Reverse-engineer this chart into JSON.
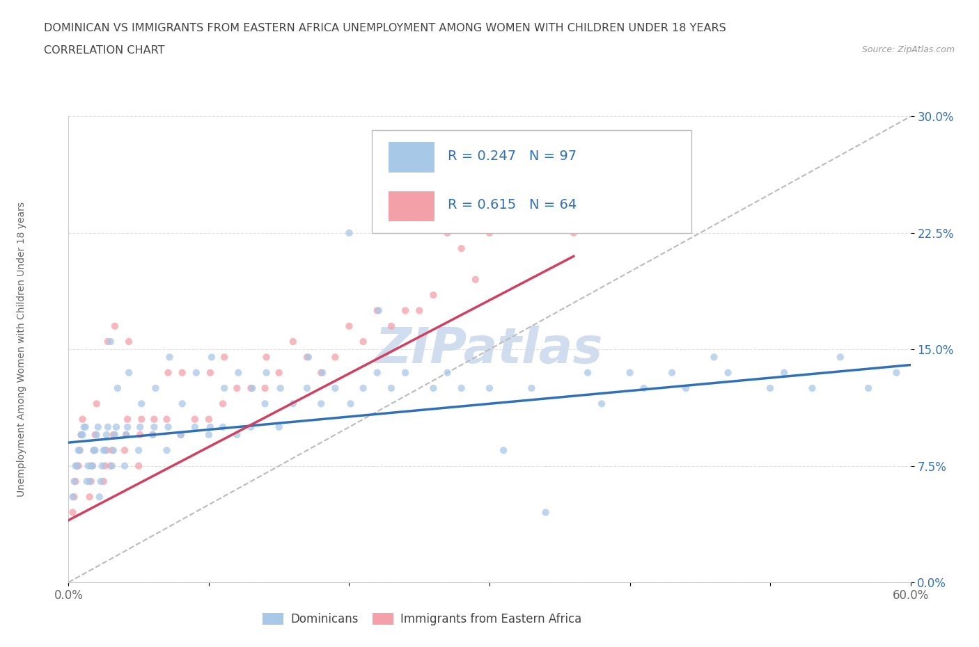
{
  "title_line1": "DOMINICAN VS IMMIGRANTS FROM EASTERN AFRICA UNEMPLOYMENT AMONG WOMEN WITH CHILDREN UNDER 18 YEARS",
  "title_line2": "CORRELATION CHART",
  "source_text": "Source: ZipAtlas.com",
  "ylabel": "Unemployment Among Women with Children Under 18 years",
  "xmin": 0.0,
  "xmax": 0.6,
  "ymin": 0.0,
  "ymax": 0.3,
  "xticks": [
    0.0,
    0.1,
    0.2,
    0.3,
    0.4,
    0.5,
    0.6
  ],
  "yticks": [
    0.0,
    0.075,
    0.15,
    0.225,
    0.3
  ],
  "ytick_labels": [
    "0.0%",
    "7.5%",
    "15.0%",
    "22.5%",
    "30.0%"
  ],
  "xtick_labels": [
    "0.0%",
    "",
    "",
    "",
    "",
    "",
    "60.0%"
  ],
  "legend_blue_label": "Dominicans",
  "legend_pink_label": "Immigrants from Eastern Africa",
  "blue_R": "R = 0.247",
  "blue_N": "N = 97",
  "pink_R": "R = 0.615",
  "pink_N": "N = 64",
  "blue_color": "#a8c8e8",
  "pink_color": "#f4a0a8",
  "blue_line_color": "#3070b8",
  "pink_line_color": "#d04060",
  "dashed_line_color": "#bbbbbb",
  "watermark_color": "#c8d8ec",
  "watermark_text": "ZIPatlas",
  "blue_scatter_x": [
    0.003,
    0.004,
    0.005,
    0.006,
    0.007,
    0.008,
    0.009,
    0.01,
    0.011,
    0.012,
    0.013,
    0.014,
    0.015,
    0.016,
    0.017,
    0.018,
    0.019,
    0.02,
    0.021,
    0.022,
    0.023,
    0.024,
    0.025,
    0.026,
    0.027,
    0.028,
    0.03,
    0.031,
    0.032,
    0.033,
    0.034,
    0.035,
    0.04,
    0.041,
    0.042,
    0.043,
    0.05,
    0.051,
    0.052,
    0.06,
    0.061,
    0.062,
    0.07,
    0.071,
    0.072,
    0.08,
    0.081,
    0.09,
    0.091,
    0.1,
    0.101,
    0.102,
    0.11,
    0.111,
    0.12,
    0.121,
    0.13,
    0.131,
    0.14,
    0.141,
    0.15,
    0.151,
    0.16,
    0.17,
    0.171,
    0.18,
    0.181,
    0.19,
    0.2,
    0.201,
    0.21,
    0.22,
    0.221,
    0.23,
    0.24,
    0.25,
    0.26,
    0.27,
    0.28,
    0.3,
    0.31,
    0.33,
    0.34,
    0.37,
    0.38,
    0.4,
    0.41,
    0.43,
    0.44,
    0.46,
    0.47,
    0.5,
    0.51,
    0.53,
    0.55,
    0.57,
    0.59
  ],
  "blue_scatter_y": [
    0.055,
    0.065,
    0.075,
    0.075,
    0.085,
    0.085,
    0.095,
    0.095,
    0.1,
    0.1,
    0.065,
    0.075,
    0.065,
    0.075,
    0.075,
    0.085,
    0.085,
    0.095,
    0.1,
    0.055,
    0.065,
    0.075,
    0.085,
    0.085,
    0.095,
    0.1,
    0.155,
    0.075,
    0.085,
    0.095,
    0.1,
    0.125,
    0.075,
    0.095,
    0.1,
    0.135,
    0.085,
    0.1,
    0.115,
    0.095,
    0.1,
    0.125,
    0.085,
    0.1,
    0.145,
    0.095,
    0.115,
    0.1,
    0.135,
    0.095,
    0.1,
    0.145,
    0.1,
    0.125,
    0.095,
    0.135,
    0.1,
    0.125,
    0.115,
    0.135,
    0.1,
    0.125,
    0.115,
    0.125,
    0.145,
    0.115,
    0.135,
    0.125,
    0.225,
    0.115,
    0.125,
    0.135,
    0.175,
    0.125,
    0.135,
    0.275,
    0.125,
    0.135,
    0.125,
    0.125,
    0.085,
    0.125,
    0.045,
    0.135,
    0.115,
    0.135,
    0.125,
    0.135,
    0.125,
    0.145,
    0.135,
    0.125,
    0.135,
    0.125,
    0.145,
    0.125,
    0.135
  ],
  "pink_scatter_x": [
    0.003,
    0.004,
    0.005,
    0.006,
    0.007,
    0.008,
    0.009,
    0.01,
    0.015,
    0.016,
    0.017,
    0.018,
    0.019,
    0.02,
    0.025,
    0.026,
    0.027,
    0.028,
    0.03,
    0.031,
    0.032,
    0.033,
    0.04,
    0.041,
    0.042,
    0.043,
    0.05,
    0.051,
    0.052,
    0.06,
    0.061,
    0.07,
    0.071,
    0.08,
    0.081,
    0.09,
    0.1,
    0.101,
    0.11,
    0.111,
    0.12,
    0.13,
    0.14,
    0.141,
    0.15,
    0.16,
    0.17,
    0.18,
    0.19,
    0.2,
    0.21,
    0.22,
    0.23,
    0.24,
    0.25,
    0.26,
    0.27,
    0.28,
    0.29,
    0.3,
    0.31,
    0.33,
    0.34,
    0.36
  ],
  "pink_scatter_y": [
    0.045,
    0.055,
    0.065,
    0.075,
    0.075,
    0.085,
    0.095,
    0.105,
    0.055,
    0.065,
    0.075,
    0.085,
    0.095,
    0.115,
    0.065,
    0.075,
    0.085,
    0.155,
    0.075,
    0.085,
    0.095,
    0.165,
    0.085,
    0.095,
    0.105,
    0.155,
    0.075,
    0.095,
    0.105,
    0.095,
    0.105,
    0.105,
    0.135,
    0.095,
    0.135,
    0.105,
    0.105,
    0.135,
    0.115,
    0.145,
    0.125,
    0.125,
    0.125,
    0.145,
    0.135,
    0.155,
    0.145,
    0.135,
    0.145,
    0.165,
    0.155,
    0.175,
    0.165,
    0.175,
    0.175,
    0.185,
    0.225,
    0.215,
    0.195,
    0.225,
    0.245,
    0.235,
    0.255,
    0.225
  ],
  "blue_trend_x": [
    0.0,
    0.6
  ],
  "blue_trend_y": [
    0.09,
    0.14
  ],
  "pink_trend_x": [
    0.0,
    0.36
  ],
  "pink_trend_y": [
    0.04,
    0.21
  ],
  "dashed_trend_x": [
    0.0,
    0.6
  ],
  "dashed_trend_y": [
    0.0,
    0.3
  ],
  "grid_color": "#dddddd",
  "background_color": "#ffffff",
  "title_fontsize": 11.5,
  "subtitle_fontsize": 11.5,
  "source_fontsize": 9,
  "axis_label_fontsize": 10,
  "tick_fontsize": 12,
  "legend_fontsize": 14,
  "scatter_size": 55,
  "scatter_alpha": 0.75
}
